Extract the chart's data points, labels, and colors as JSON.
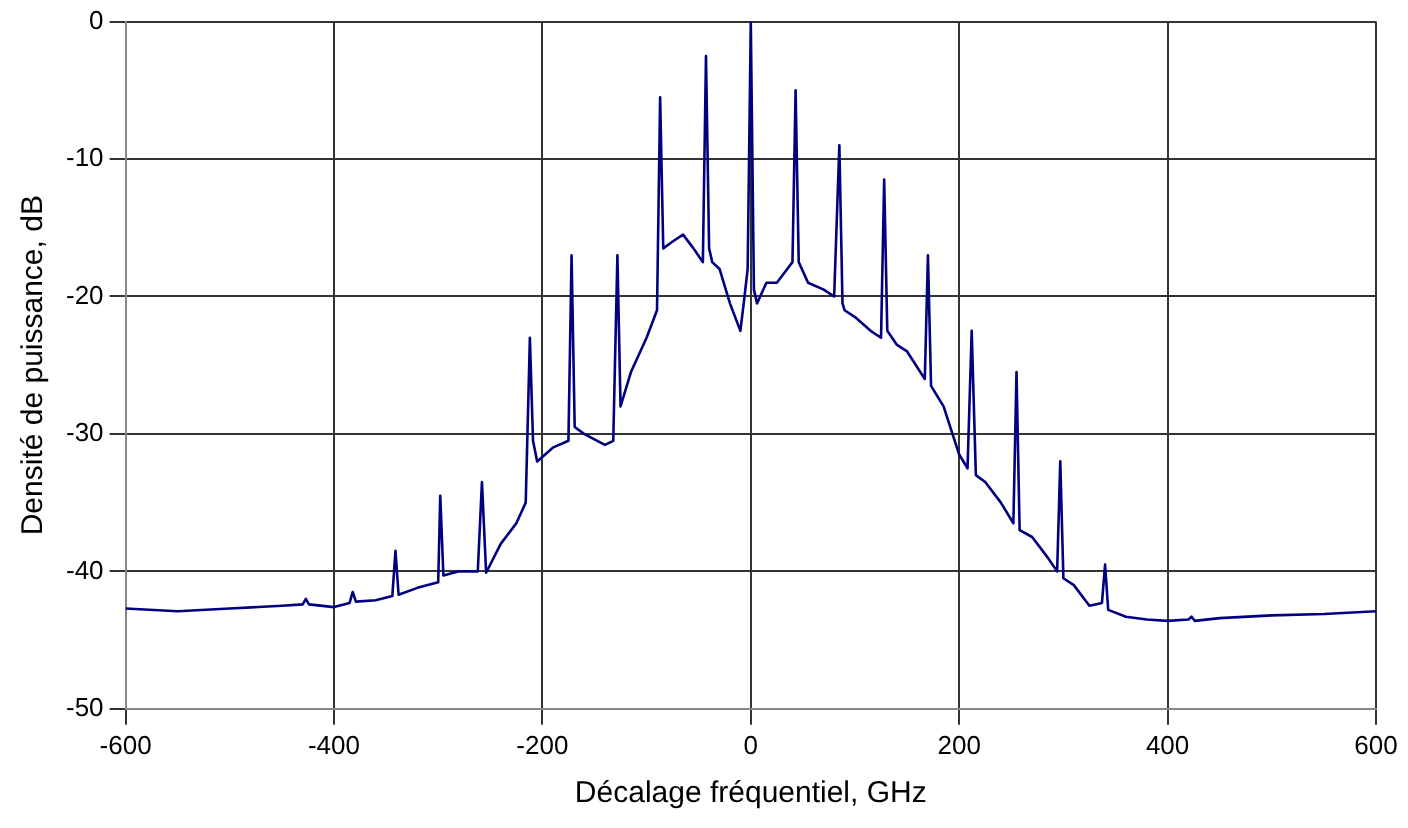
{
  "chart_data": {
    "type": "line",
    "xlabel": "Décalage fréquentiel, GHz",
    "ylabel": "Densité de puissance, dB",
    "x": [
      -600,
      -550,
      -500,
      -450,
      -430,
      -427,
      -424,
      -400,
      -385,
      -382,
      -379,
      -360,
      -344,
      -341,
      -338,
      -320,
      -300,
      -298,
      -295,
      -280,
      -262,
      -258,
      -254,
      -240,
      -225,
      -216,
      -212,
      -209,
      -205,
      -190,
      -175,
      -172,
      -169,
      -160,
      -140,
      -132,
      -128,
      -125,
      -115,
      -100,
      -90,
      -87,
      -84,
      -75,
      -65,
      -55,
      -46,
      -43,
      -40,
      -37,
      -30,
      -20,
      -10,
      -6,
      -3,
      0,
      3,
      6,
      15,
      25,
      35,
      40,
      43,
      46,
      55,
      70,
      80,
      85,
      88,
      90,
      100,
      115,
      125,
      128,
      131,
      140,
      150,
      167,
      170,
      173,
      185,
      200,
      208,
      212,
      216,
      225,
      240,
      252,
      255,
      258,
      270,
      285,
      294,
      297,
      300,
      310,
      325,
      337,
      340,
      343,
      360,
      380,
      400,
      420,
      423,
      426,
      450,
      500,
      550,
      600
    ],
    "series": [
      {
        "color": "#000080",
        "values": [
          -42.7,
          -42.9,
          -42.7,
          -42.5,
          -42.4,
          -42.0,
          -42.4,
          -42.6,
          -42.3,
          -41.5,
          -42.2,
          -42.1,
          -41.8,
          -38.5,
          -41.7,
          -41.2,
          -40.8,
          -34.5,
          -40.3,
          -40.0,
          -40.0,
          -33.5,
          -40.1,
          -38.0,
          -36.5,
          -35.0,
          -23.0,
          -30.5,
          -32.0,
          -31.0,
          -30.5,
          -17.0,
          -29.5,
          -30.0,
          -30.8,
          -30.5,
          -17.0,
          -28.0,
          -25.5,
          -23.0,
          -21.0,
          -5.5,
          -16.5,
          -16.0,
          -15.5,
          -16.5,
          -17.5,
          -2.5,
          -16.5,
          -17.5,
          -18.0,
          -20.5,
          -22.5,
          -20.0,
          -18.0,
          0.0,
          -19.5,
          -20.5,
          -19.0,
          -19.0,
          -18.0,
          -17.5,
          -5.0,
          -17.5,
          -19.0,
          -19.5,
          -20.0,
          -9.0,
          -20.5,
          -21.0,
          -21.5,
          -22.5,
          -23.0,
          -11.5,
          -22.5,
          -23.5,
          -24.0,
          -26.0,
          -17.0,
          -26.5,
          -28.0,
          -31.5,
          -32.5,
          -22.5,
          -33.0,
          -33.5,
          -35.0,
          -36.5,
          -25.5,
          -37.0,
          -37.5,
          -39.0,
          -40.0,
          -32.0,
          -40.5,
          -41.0,
          -42.5,
          -42.3,
          -39.5,
          -42.8,
          -43.3,
          -43.5,
          -43.6,
          -43.5,
          -43.3,
          -43.6,
          -43.4,
          -43.2,
          -43.1,
          -42.9
        ]
      }
    ],
    "xlim": [
      -600,
      600
    ],
    "xticks": [
      -600,
      -400,
      -200,
      0,
      200,
      400,
      600
    ],
    "ylim": [
      -50,
      0
    ],
    "yticks": [
      -50,
      -40,
      -30,
      -20,
      -10,
      0
    ],
    "grid": true,
    "legend": false,
    "marker": "none",
    "line_style": "solid"
  }
}
